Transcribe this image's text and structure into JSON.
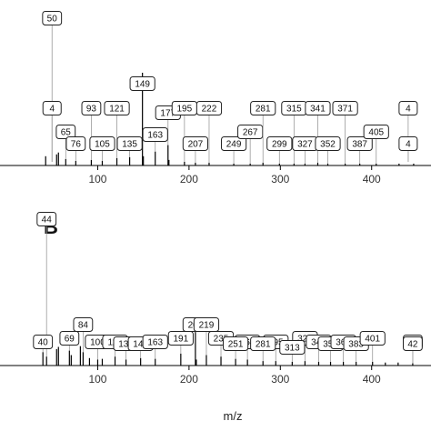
{
  "chart_data": {
    "type": "bar",
    "xlabel": "m/z",
    "xlim": [
      -7,
      465
    ],
    "xticks": [
      100,
      200,
      300,
      400
    ],
    "panels": [
      {
        "letter": "A",
        "ylim": [
          0,
          100
        ],
        "peaks": [
          {
            "x": 43,
            "y": 10
          },
          {
            "x": 55,
            "y": 12
          },
          {
            "x": 57,
            "y": 14
          },
          {
            "x": 65,
            "y": 7
          },
          {
            "x": 76,
            "y": 5
          },
          {
            "x": 93,
            "y": 6
          },
          {
            "x": 105,
            "y": 5
          },
          {
            "x": 121,
            "y": 8
          },
          {
            "x": 135,
            "y": 9
          },
          {
            "x": 149,
            "y": 100
          },
          {
            "x": 150,
            "y": 10
          },
          {
            "x": 163,
            "y": 15
          },
          {
            "x": 177,
            "y": 22
          },
          {
            "x": 178,
            "y": 6
          },
          {
            "x": 195,
            "y": 4
          },
          {
            "x": 207,
            "y": 3
          },
          {
            "x": 222,
            "y": 3
          },
          {
            "x": 249,
            "y": 2
          },
          {
            "x": 267,
            "y": 2
          },
          {
            "x": 281,
            "y": 3
          },
          {
            "x": 299,
            "y": 2
          },
          {
            "x": 315,
            "y": 2
          },
          {
            "x": 327,
            "y": 2
          },
          {
            "x": 341,
            "y": 3
          },
          {
            "x": 352,
            "y": 2
          },
          {
            "x": 371,
            "y": 2
          },
          {
            "x": 387,
            "y": 2
          },
          {
            "x": 405,
            "y": 2
          },
          {
            "x": 430,
            "y": 2
          },
          {
            "x": 446,
            "y": 2
          }
        ],
        "labels": [
          {
            "text": "50",
            "x": 50,
            "row": 0
          },
          {
            "text": "4",
            "x": 50,
            "row": 2
          },
          {
            "text": "65",
            "x": 65,
            "row": 3
          },
          {
            "text": "76",
            "x": 76,
            "row": 4
          },
          {
            "text": "93",
            "x": 93,
            "row": 2
          },
          {
            "text": "105",
            "x": 105,
            "row": 4
          },
          {
            "text": "121",
            "x": 121,
            "row": 2
          },
          {
            "text": "135",
            "x": 135,
            "row": 4
          },
          {
            "text": "149",
            "x": 149,
            "row": 1
          },
          {
            "text": "177",
            "x": 177,
            "row": 5
          },
          {
            "text": "163",
            "x": 163,
            "row": 6
          },
          {
            "text": "195",
            "x": 195,
            "row": 2
          },
          {
            "text": "222",
            "x": 222,
            "row": 2
          },
          {
            "text": "207",
            "x": 207,
            "row": 4
          },
          {
            "text": "249",
            "x": 249,
            "row": 4
          },
          {
            "text": "267",
            "x": 267,
            "row": 3
          },
          {
            "text": "281",
            "x": 281,
            "row": 2
          },
          {
            "text": "299",
            "x": 299,
            "row": 4
          },
          {
            "text": "315",
            "x": 315,
            "row": 2
          },
          {
            "text": "327",
            "x": 327,
            "row": 4
          },
          {
            "text": "341",
            "x": 341,
            "row": 2
          },
          {
            "text": "352",
            "x": 352,
            "row": 4
          },
          {
            "text": "371",
            "x": 371,
            "row": 2
          },
          {
            "text": "387",
            "x": 387,
            "row": 4
          },
          {
            "text": "405",
            "x": 405,
            "row": 3
          },
          {
            "text": "4",
            "x": 440,
            "row": 2
          },
          {
            "text": "4",
            "x": 440,
            "row": 4
          }
        ]
      },
      {
        "letter": "B",
        "ylim": [
          0,
          100
        ],
        "peaks": [
          {
            "x": 40,
            "y": 18
          },
          {
            "x": 44,
            "y": 12
          },
          {
            "x": 55,
            "y": 22
          },
          {
            "x": 57,
            "y": 25
          },
          {
            "x": 69,
            "y": 20
          },
          {
            "x": 71,
            "y": 14
          },
          {
            "x": 81,
            "y": 26
          },
          {
            "x": 84,
            "y": 18
          },
          {
            "x": 91,
            "y": 10
          },
          {
            "x": 100,
            "y": 8
          },
          {
            "x": 105,
            "y": 9
          },
          {
            "x": 119,
            "y": 12
          },
          {
            "x": 131,
            "y": 8
          },
          {
            "x": 147,
            "y": 10
          },
          {
            "x": 163,
            "y": 9
          },
          {
            "x": 191,
            "y": 16
          },
          {
            "x": 207,
            "y": 45
          },
          {
            "x": 208,
            "y": 8
          },
          {
            "x": 219,
            "y": 14
          },
          {
            "x": 235,
            "y": 12
          },
          {
            "x": 251,
            "y": 9
          },
          {
            "x": 264,
            "y": 8
          },
          {
            "x": 281,
            "y": 6
          },
          {
            "x": 295,
            "y": 6
          },
          {
            "x": 313,
            "y": 5
          },
          {
            "x": 327,
            "y": 6
          },
          {
            "x": 342,
            "y": 5
          },
          {
            "x": 355,
            "y": 5
          },
          {
            "x": 369,
            "y": 5
          },
          {
            "x": 383,
            "y": 5
          },
          {
            "x": 401,
            "y": 5
          },
          {
            "x": 415,
            "y": 4
          },
          {
            "x": 429,
            "y": 4
          },
          {
            "x": 445,
            "y": 3
          }
        ],
        "labels": [
          {
            "text": "44",
            "x": 44,
            "row": 0
          },
          {
            "text": "40",
            "x": 40,
            "row": 3
          },
          {
            "text": "84",
            "x": 84,
            "row": 2
          },
          {
            "text": "69",
            "x": 69,
            "row": 4
          },
          {
            "text": "100",
            "x": 100,
            "row": 3
          },
          {
            "text": "119",
            "x": 119,
            "row": 3
          },
          {
            "text": "131",
            "x": 131,
            "row": 5
          },
          {
            "text": "147",
            "x": 147,
            "row": 5
          },
          {
            "text": "163",
            "x": 163,
            "row": 3
          },
          {
            "text": "207",
            "x": 207,
            "row": 2
          },
          {
            "text": "191",
            "x": 191,
            "row": 4
          },
          {
            "text": "219",
            "x": 219,
            "row": 2
          },
          {
            "text": "235",
            "x": 235,
            "row": 4
          },
          {
            "text": "264",
            "x": 264,
            "row": 3
          },
          {
            "text": "251",
            "x": 251,
            "row": 5
          },
          {
            "text": "295",
            "x": 295,
            "row": 3
          },
          {
            "text": "281",
            "x": 281,
            "row": 5
          },
          {
            "text": "327",
            "x": 327,
            "row": 4
          },
          {
            "text": "313",
            "x": 313,
            "row": 6
          },
          {
            "text": "342",
            "x": 342,
            "row": 3
          },
          {
            "text": "355",
            "x": 355,
            "row": 5
          },
          {
            "text": "369",
            "x": 369,
            "row": 3
          },
          {
            "text": "383",
            "x": 383,
            "row": 5
          },
          {
            "text": "401",
            "x": 401,
            "row": 4
          },
          {
            "text": "41",
            "x": 445,
            "row": 3
          },
          {
            "text": "42",
            "x": 445,
            "row": 5
          }
        ]
      }
    ]
  }
}
